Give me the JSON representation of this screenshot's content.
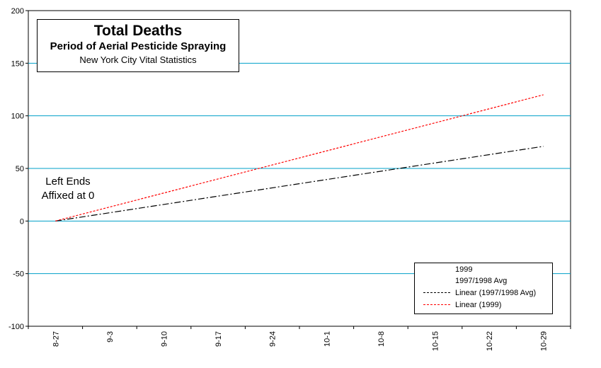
{
  "title": {
    "main": "Total Deaths",
    "sub": "Period of Aerial Pesticide Spraying",
    "note": "New York City Vital Statistics"
  },
  "annotation": {
    "line1": "Left Ends",
    "line2": "Affixed at 0"
  },
  "legend": {
    "items": [
      "1999",
      "1997/1998 Avg",
      "Linear (1997/1998 Avg)",
      "Linear (1999)"
    ]
  },
  "colors": {
    "gridline": "#00a0c8",
    "trend_1999": "#ff0000",
    "trend_avg": "#000000"
  },
  "chart_data": {
    "type": "line",
    "title": "Total Deaths",
    "subtitle": "Period of Aerial Pesticide Spraying",
    "xlabel": "",
    "ylabel": "",
    "ylim": [
      -100,
      200
    ],
    "yticks": [
      -100,
      -50,
      0,
      50,
      100,
      150,
      200
    ],
    "categories": [
      "8-27",
      "9-3",
      "9-10",
      "9-17",
      "9-24",
      "10-1",
      "10-8",
      "10-15",
      "10-22",
      "10-29"
    ],
    "grid": "horizontal",
    "legend_position": "bottom-right",
    "series": [
      {
        "name": "Linear (1997/1998 Avg)",
        "style": "dash-dot",
        "x": [
          "8-27",
          "10-29"
        ],
        "values": [
          0,
          71
        ]
      },
      {
        "name": "Linear (1999)",
        "style": "dashed",
        "x": [
          "8-27",
          "10-29"
        ],
        "values": [
          0,
          120
        ]
      }
    ]
  }
}
